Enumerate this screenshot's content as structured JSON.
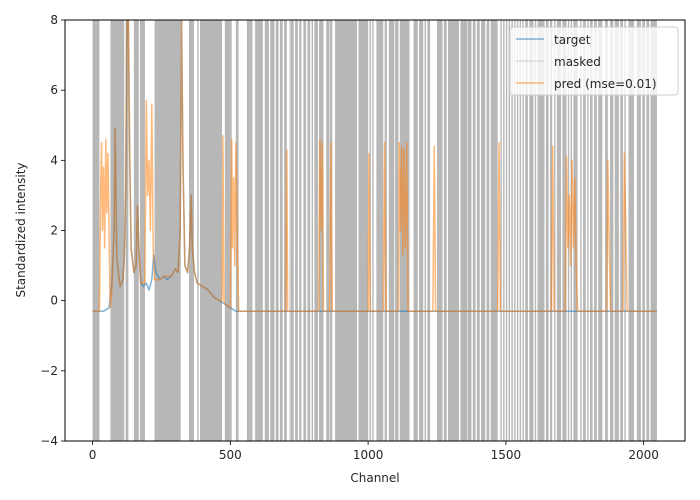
{
  "chart_data": {
    "type": "line",
    "xlabel": "Channel",
    "ylabel": "Standardized intensity",
    "xlim": [
      -100,
      2150
    ],
    "ylim": [
      -4,
      8
    ],
    "xticks": [
      0,
      500,
      1000,
      1500,
      2000
    ],
    "yticks": [
      -4,
      -2,
      0,
      2,
      4,
      6,
      8
    ],
    "xtick_labels": [
      "0",
      "500",
      "1000",
      "1500",
      "2000"
    ],
    "ytick_labels": [
      "−4",
      "−2",
      "0",
      "2",
      "4",
      "6",
      "8"
    ],
    "legend_position": "upper-right",
    "series": [
      {
        "name": "target",
        "color": "#1f77b4",
        "points": [
          [
            0,
            -0.3
          ],
          [
            40,
            -0.3
          ],
          [
            60,
            -0.2
          ],
          [
            70,
            0.5
          ],
          [
            78,
            2.0
          ],
          [
            82,
            4.9
          ],
          [
            88,
            1.2
          ],
          [
            100,
            0.4
          ],
          [
            110,
            0.6
          ],
          [
            115,
            1.2
          ],
          [
            120,
            3.0
          ],
          [
            125,
            8.0
          ],
          [
            130,
            8.0
          ],
          [
            135,
            4.0
          ],
          [
            140,
            1.5
          ],
          [
            150,
            0.8
          ],
          [
            158,
            1.0
          ],
          [
            163,
            2.7
          ],
          [
            168,
            1.5
          ],
          [
            175,
            0.5
          ],
          [
            185,
            0.4
          ],
          [
            195,
            0.5
          ],
          [
            205,
            0.3
          ],
          [
            215,
            0.6
          ],
          [
            222,
            1.3
          ],
          [
            230,
            0.8
          ],
          [
            245,
            0.6
          ],
          [
            260,
            0.7
          ],
          [
            270,
            0.6
          ],
          [
            285,
            0.7
          ],
          [
            300,
            0.9
          ],
          [
            310,
            0.8
          ],
          [
            318,
            2.0
          ],
          [
            323,
            8.0
          ],
          [
            328,
            4.0
          ],
          [
            335,
            1.0
          ],
          [
            345,
            0.8
          ],
          [
            352,
            1.5
          ],
          [
            358,
            3.0
          ],
          [
            362,
            1.5
          ],
          [
            370,
            0.8
          ],
          [
            380,
            0.5
          ],
          [
            400,
            0.4
          ],
          [
            420,
            0.3
          ],
          [
            440,
            0.1
          ],
          [
            460,
            0.0
          ],
          [
            480,
            -0.1
          ],
          [
            500,
            -0.2
          ],
          [
            520,
            -0.3
          ],
          [
            550,
            -0.3
          ],
          [
            600,
            -0.3
          ],
          [
            800,
            -0.3
          ],
          [
            1000,
            -0.3
          ],
          [
            1500,
            -0.3
          ],
          [
            2048,
            -0.3
          ]
        ]
      },
      {
        "name": "masked",
        "color": "#aaaaaa",
        "intervals": [
          [
            0,
            25
          ],
          [
            65,
            115
          ],
          [
            120,
            130
          ],
          [
            150,
            168
          ],
          [
            172,
            190
          ],
          [
            225,
            320
          ],
          [
            350,
            368
          ],
          [
            380,
            385
          ],
          [
            390,
            470
          ],
          [
            480,
            500
          ],
          [
            500,
            505
          ],
          [
            520,
            530
          ],
          [
            560,
            570
          ],
          [
            570,
            580
          ],
          [
            590,
            600
          ],
          [
            600,
            610
          ],
          [
            610,
            618
          ],
          [
            625,
            640
          ],
          [
            645,
            660
          ],
          [
            665,
            675
          ],
          [
            680,
            690
          ],
          [
            695,
            705
          ],
          [
            715,
            718
          ],
          [
            720,
            730
          ],
          [
            735,
            745
          ],
          [
            750,
            758
          ],
          [
            765,
            775
          ],
          [
            780,
            790
          ],
          [
            795,
            800
          ],
          [
            805,
            818
          ],
          [
            822,
            838
          ],
          [
            848,
            860
          ],
          [
            862,
            870
          ],
          [
            880,
            960
          ],
          [
            965,
            1000
          ],
          [
            1005,
            1010
          ],
          [
            1015,
            1020
          ],
          [
            1030,
            1055
          ],
          [
            1060,
            1068
          ],
          [
            1075,
            1095
          ],
          [
            1098,
            1110
          ],
          [
            1115,
            1150
          ],
          [
            1165,
            1180
          ],
          [
            1185,
            1200
          ],
          [
            1205,
            1210
          ],
          [
            1215,
            1225
          ],
          [
            1250,
            1270
          ],
          [
            1275,
            1285
          ],
          [
            1290,
            1330
          ],
          [
            1335,
            1360
          ],
          [
            1362,
            1375
          ],
          [
            1380,
            1390
          ],
          [
            1395,
            1405
          ],
          [
            1410,
            1425
          ],
          [
            1430,
            1440
          ],
          [
            1445,
            1470
          ],
          [
            1480,
            1485
          ],
          [
            1490,
            1495
          ],
          [
            1500,
            1505
          ],
          [
            1510,
            1515
          ],
          [
            1520,
            1525
          ],
          [
            1530,
            1535
          ],
          [
            1540,
            1545
          ],
          [
            1550,
            1555
          ],
          [
            1560,
            1565
          ],
          [
            1570,
            1580
          ],
          [
            1585,
            1600
          ],
          [
            1605,
            1610
          ],
          [
            1615,
            1640
          ],
          [
            1645,
            1655
          ],
          [
            1660,
            1668
          ],
          [
            1675,
            1680
          ],
          [
            1685,
            1700
          ],
          [
            1705,
            1720
          ],
          [
            1725,
            1730
          ],
          [
            1735,
            1740
          ],
          [
            1745,
            1760
          ],
          [
            1770,
            1775
          ],
          [
            1780,
            1790
          ],
          [
            1795,
            1800
          ],
          [
            1805,
            1815
          ],
          [
            1820,
            1830
          ],
          [
            1835,
            1850
          ],
          [
            1860,
            1870
          ],
          [
            1878,
            1890
          ],
          [
            1895,
            1910
          ],
          [
            1915,
            1925
          ],
          [
            1930,
            1935
          ],
          [
            1945,
            1965
          ],
          [
            1975,
            1990
          ],
          [
            1995,
            2005
          ],
          [
            2010,
            2020
          ],
          [
            2025,
            2048
          ]
        ]
      },
      {
        "name": "pred (mse=0.01)",
        "color": "#ff7f0e",
        "points": [
          [
            0,
            -0.3
          ],
          [
            25,
            -0.3
          ],
          [
            30,
            3.5
          ],
          [
            33,
            4.5
          ],
          [
            36,
            2.0
          ],
          [
            40,
            3.8
          ],
          [
            44,
            1.5
          ],
          [
            48,
            4.6
          ],
          [
            52,
            2.5
          ],
          [
            56,
            4.2
          ],
          [
            60,
            1.8
          ],
          [
            64,
            -0.2
          ],
          [
            70,
            0.3
          ],
          [
            78,
            2.0
          ],
          [
            82,
            4.9
          ],
          [
            88,
            1.2
          ],
          [
            100,
            0.4
          ],
          [
            110,
            0.6
          ],
          [
            115,
            1.2
          ],
          [
            120,
            3.0
          ],
          [
            125,
            8.0
          ],
          [
            130,
            8.0
          ],
          [
            135,
            4.0
          ],
          [
            140,
            1.5
          ],
          [
            150,
            0.8
          ],
          [
            158,
            1.0
          ],
          [
            163,
            2.7
          ],
          [
            168,
            1.5
          ],
          [
            175,
            0.5
          ],
          [
            190,
            0.5
          ],
          [
            195,
            5.7
          ],
          [
            200,
            3.0
          ],
          [
            205,
            4.0
          ],
          [
            210,
            2.0
          ],
          [
            215,
            5.6
          ],
          [
            220,
            1.5
          ],
          [
            225,
            0.6
          ],
          [
            245,
            0.6
          ],
          [
            260,
            0.7
          ],
          [
            285,
            0.7
          ],
          [
            300,
            0.9
          ],
          [
            310,
            0.8
          ],
          [
            318,
            2.0
          ],
          [
            323,
            8.0
          ],
          [
            328,
            4.0
          ],
          [
            335,
            1.0
          ],
          [
            345,
            0.8
          ],
          [
            352,
            1.5
          ],
          [
            358,
            3.0
          ],
          [
            362,
            1.5
          ],
          [
            370,
            0.8
          ],
          [
            380,
            0.5
          ],
          [
            400,
            0.4
          ],
          [
            420,
            0.3
          ],
          [
            440,
            0.1
          ],
          [
            460,
            0.0
          ],
          [
            470,
            0.0
          ],
          [
            473,
            4.7
          ],
          [
            477,
            0.0
          ],
          [
            480,
            -0.1
          ],
          [
            500,
            -0.2
          ],
          [
            505,
            4.6
          ],
          [
            508,
            1.5
          ],
          [
            512,
            3.5
          ],
          [
            516,
            1.0
          ],
          [
            520,
            4.5
          ],
          [
            525,
            2.0
          ],
          [
            530,
            -0.3
          ],
          [
            560,
            -0.3
          ],
          [
            700,
            -0.3
          ],
          [
            705,
            4.3
          ],
          [
            708,
            -0.3
          ],
          [
            820,
            -0.3
          ],
          [
            825,
            4.6
          ],
          [
            830,
            2.0
          ],
          [
            834,
            4.5
          ],
          [
            838,
            -0.3
          ],
          [
            860,
            -0.3
          ],
          [
            865,
            4.5
          ],
          [
            870,
            -0.3
          ],
          [
            1000,
            -0.3
          ],
          [
            1003,
            4.2
          ],
          [
            1008,
            -0.3
          ],
          [
            1055,
            -0.3
          ],
          [
            1060,
            4.5
          ],
          [
            1065,
            -0.3
          ],
          [
            1110,
            -0.3
          ],
          [
            1113,
            4.5
          ],
          [
            1117,
            2.0
          ],
          [
            1122,
            4.4
          ],
          [
            1126,
            1.3
          ],
          [
            1130,
            4.3
          ],
          [
            1135,
            1.5
          ],
          [
            1140,
            4.5
          ],
          [
            1145,
            -0.3
          ],
          [
            1235,
            -0.3
          ],
          [
            1240,
            4.4
          ],
          [
            1245,
            -0.3
          ],
          [
            1470,
            -0.3
          ],
          [
            1475,
            4.5
          ],
          [
            1480,
            -0.3
          ],
          [
            1665,
            -0.3
          ],
          [
            1670,
            4.4
          ],
          [
            1675,
            -0.3
          ],
          [
            1715,
            -0.3
          ],
          [
            1720,
            4.1
          ],
          [
            1725,
            1.5
          ],
          [
            1730,
            3.0
          ],
          [
            1735,
            1.0
          ],
          [
            1740,
            4.0
          ],
          [
            1745,
            1.5
          ],
          [
            1750,
            3.5
          ],
          [
            1755,
            1.0
          ],
          [
            1760,
            -0.3
          ],
          [
            1865,
            -0.3
          ],
          [
            1870,
            4.0
          ],
          [
            1875,
            1.5
          ],
          [
            1880,
            -0.3
          ],
          [
            1925,
            -0.3
          ],
          [
            1930,
            4.2
          ],
          [
            1935,
            2.0
          ],
          [
            1940,
            -0.3
          ],
          [
            2048,
            -0.3
          ]
        ]
      }
    ]
  }
}
